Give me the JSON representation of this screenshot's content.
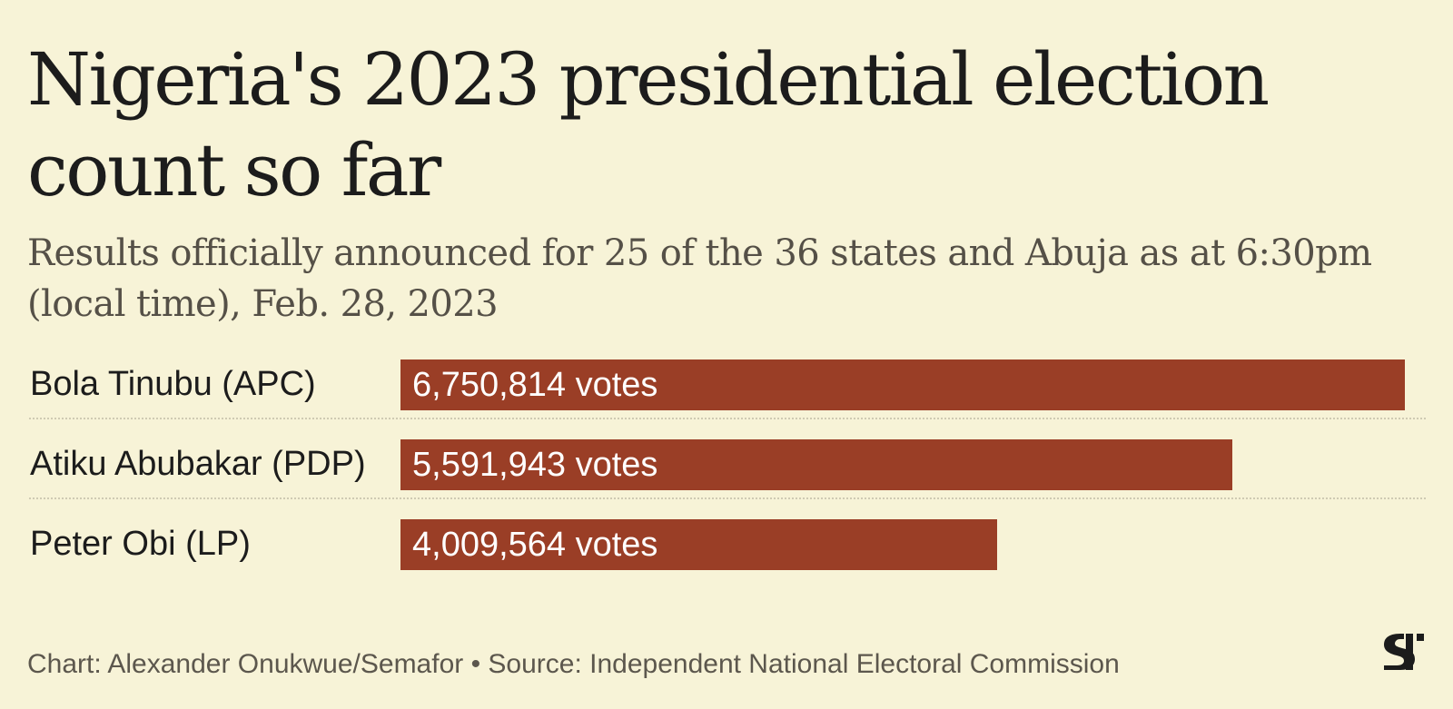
{
  "title": "Nigeria's 2023 presidential election count so far",
  "subtitle": "Results officially announced for 25 of the 36 states and Abuja as at 6:30pm (local time), Feb. 28, 2023",
  "chart_data": {
    "type": "bar",
    "orientation": "horizontal",
    "categories": [
      "Bola Tinubu (APC)",
      "Atiku Abubakar (PDP)",
      "Peter Obi (LP)"
    ],
    "values": [
      6750814,
      5591943,
      4009564
    ],
    "value_labels": [
      "6,750,814 votes",
      "5,591,943 votes",
      "4,009,564 votes"
    ],
    "bar_color": "#9a3e26",
    "grid": false
  },
  "footer": {
    "credit": "Chart: Alexander Onukwue/Semafor • Source: Independent National Electoral Commission"
  },
  "logo_icon": "semafor-logo-icon",
  "colors": {
    "background": "#f7f3d7",
    "text": "#1c1c1c",
    "bar": "#9a3e26"
  }
}
